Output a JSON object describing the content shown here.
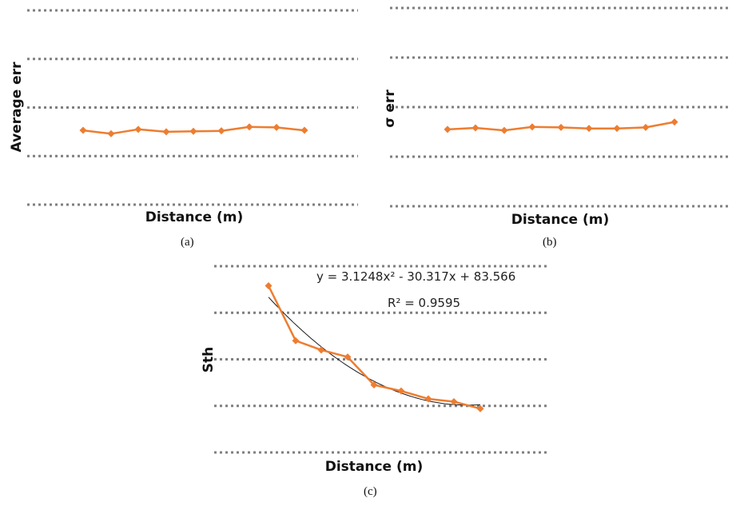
{
  "captions": [
    "(a)",
    "(b)",
    "(c)"
  ],
  "chart_data": [
    {
      "type": "line",
      "xlabel": "Distance (m)",
      "ylabel": "Average err",
      "ylim": [
        0,
        4
      ],
      "grid": true,
      "series": [
        {
          "color": "#ed7d31",
          "marker": "diamond",
          "values": [
            1.53,
            1.46,
            1.55,
            1.5,
            1.51,
            1.52,
            1.6,
            1.59,
            1.53
          ]
        }
      ]
    },
    {
      "type": "line",
      "xlabel": "Distance (m)",
      "ylabel": "σ err",
      "ylim": [
        0,
        4
      ],
      "grid": true,
      "series": [
        {
          "color": "#ed7d31",
          "marker": "diamond",
          "values": [
            1.55,
            1.58,
            1.53,
            1.6,
            1.59,
            1.57,
            1.57,
            1.59,
            1.7
          ]
        }
      ]
    },
    {
      "type": "line",
      "xlabel": "Distance (m)",
      "ylabel": "Sth",
      "ylim": [
        0,
        4
      ],
      "grid": true,
      "annotations": {
        "equation": "y = 3.1248x² - 30.317x + 83.566",
        "r_squared": "R² = 0.9595"
      },
      "series": [
        {
          "color": "#ed7d31",
          "marker": "diamond",
          "values": [
            3.58,
            2.4,
            2.2,
            2.05,
            1.45,
            1.32,
            1.15,
            1.09,
            0.94
          ]
        }
      ],
      "trendline": {
        "type": "polynomial",
        "order": 2,
        "color": "#1a1a1a"
      }
    }
  ]
}
